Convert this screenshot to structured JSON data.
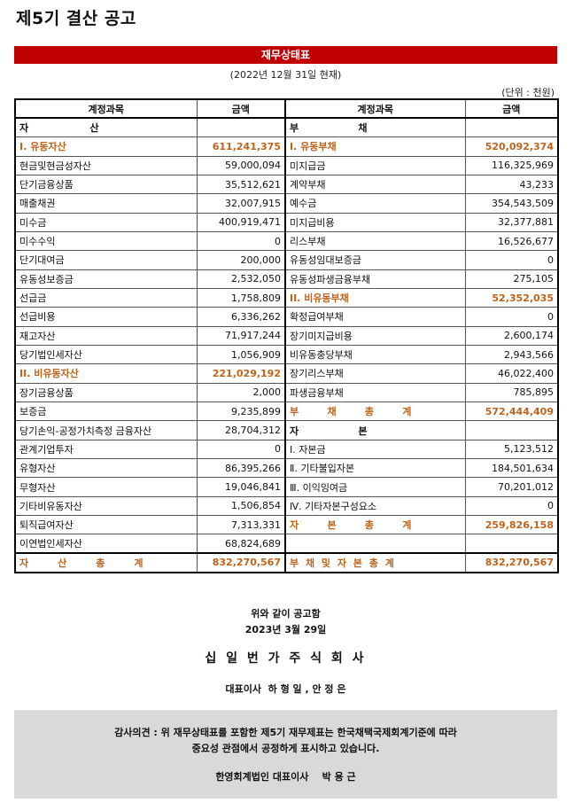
{
  "title": "제5기 결산 공고",
  "banner": "재무상태표",
  "date": "(2022년 12월 31일 현재)",
  "unit": "(단위 : 천원)",
  "headers": {
    "account": "계정과목",
    "amount": "금액"
  },
  "section": {
    "left": [
      "자",
      "산"
    ],
    "right": [
      "부",
      "채"
    ]
  },
  "rows": [
    {
      "l": "I. 유동자산",
      "lv": "611,241,375",
      "lo": true,
      "r": "I. 유동부채",
      "rv": "520,092,374",
      "ro": true
    },
    {
      "l": "현금및현금성자산",
      "lv": "59,000,094",
      "r": "미지급금",
      "rv": "116,325,969"
    },
    {
      "l": "단기금융상품",
      "lv": "35,512,621",
      "r": "계약부채",
      "rv": "43,233"
    },
    {
      "l": "매출채권",
      "lv": "32,007,915",
      "r": "예수금",
      "rv": "354,543,509"
    },
    {
      "l": "미수금",
      "lv": "400,919,471",
      "r": "미지급비용",
      "rv": "32,377,881"
    },
    {
      "l": "미수수익",
      "lv": "0",
      "r": "리스부채",
      "rv": "16,526,677"
    },
    {
      "l": "단기대여금",
      "lv": "200,000",
      "r": "유동성임대보증금",
      "rv": "0"
    },
    {
      "l": "유동성보증금",
      "lv": "2,532,050",
      "r": "유동성파생금융부채",
      "rv": "275,105"
    },
    {
      "l": "선급금",
      "lv": "1,758,809",
      "r": "II. 비유동부채",
      "rv": "52,352,035",
      "ro": true
    },
    {
      "l": "선급비용",
      "lv": "6,336,262",
      "r": "확정급여부채",
      "rv": "0"
    },
    {
      "l": "재고자산",
      "lv": "71,917,244",
      "r": "장기미지급비용",
      "rv": "2,600,174"
    },
    {
      "l": "당기법인세자산",
      "lv": "1,056,909",
      "r": "비유동충당부채",
      "rv": "2,943,566"
    },
    {
      "l": "II. 비유동자산",
      "lv": "221,029,192",
      "lo": true,
      "r": "장기리스부채",
      "rv": "46,022,400"
    },
    {
      "l": "장기금융상품",
      "lv": "2,000",
      "r": "파생금융부채",
      "rv": "785,895"
    },
    {
      "l": "보증금",
      "lv": "9,235,899",
      "r": "부 채 총 계",
      "rv": "572,444,409",
      "ro": true,
      "rs": [
        "부",
        "채",
        "총",
        "계"
      ]
    },
    {
      "l": "당기손익-공정가치측정 금융자산",
      "lv": "28,704,312",
      "r": "자 본",
      "rv": "",
      "rb": true,
      "rs": [
        "자",
        "본"
      ]
    },
    {
      "l": "관계기업투자",
      "lv": "0",
      "r": "Ⅰ. 자본금",
      "rv": "5,123,512"
    },
    {
      "l": "유형자산",
      "lv": "86,395,266",
      "r": "Ⅱ. 기타불입자본",
      "rv": "184,501,634"
    },
    {
      "l": "무형자산",
      "lv": "19,046,841",
      "r": "Ⅲ. 이익잉여금",
      "rv": "70,201,012"
    },
    {
      "l": "기타비유동자산",
      "lv": "1,506,854",
      "r": "Ⅳ. 기타자본구성요소",
      "rv": "0"
    },
    {
      "l": "퇴직급여자산",
      "lv": "7,313,331",
      "r": "자 본 총 계",
      "rv": "259,826,158",
      "ro": true,
      "rs": [
        "자",
        "본",
        "총",
        "계"
      ]
    },
    {
      "l": "이연법인세자산",
      "lv": "68,824,689",
      "r": "",
      "rv": ""
    }
  ],
  "totals": {
    "left_label": [
      "자",
      "산",
      "총",
      "계"
    ],
    "left_value": "832,270,567",
    "right_label": "부 채 및 자 본 총 계",
    "right_value": "832,270,567"
  },
  "notice_line1": "위와 같이 공고함",
  "notice_line2": "2023년 3월 29일",
  "company": "십 일 번 가 주 식 회 사",
  "ceo": "대표이사  하 형 일 , 안 정 은",
  "audit_line1": "감사의견 : 위 재무상태표를 포함한 제5기 재무제표는 한국채택국제회계기준에 따라",
  "audit_line2": "중요성 관점에서 공정하게 표시하고 있습니다.",
  "auditor": "한영회계법인 대표이사    박 용 근"
}
